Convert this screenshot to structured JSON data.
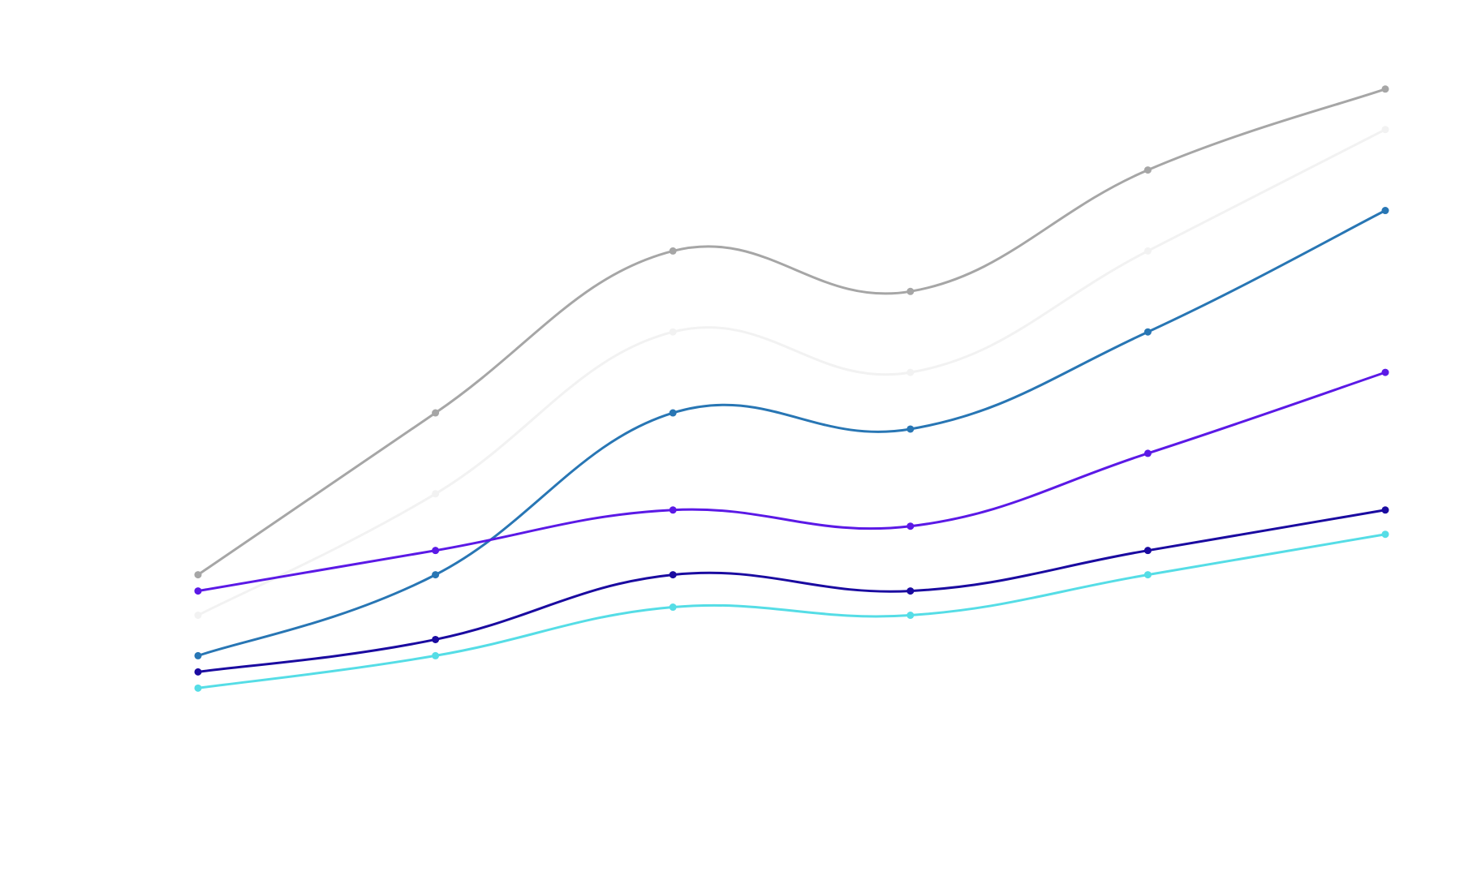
{
  "chart_data": {
    "type": "line",
    "smooth": true,
    "markers": true,
    "grid": false,
    "legend": "none",
    "x": [
      0,
      1,
      2,
      3,
      4,
      5
    ],
    "xlim": [
      0,
      5
    ],
    "ylim": [
      0,
      100
    ],
    "series": [
      {
        "color": "#a6a6a6",
        "values": [
          30.5,
          50.5,
          70.5,
          65.5,
          80.5,
          90.5
        ]
      },
      {
        "color": "#f2f2f2",
        "values": [
          25.5,
          40.5,
          60.5,
          55.5,
          70.5,
          85.5
        ]
      },
      {
        "color": "#2876b4",
        "values": [
          20.5,
          30.5,
          50.5,
          48.5,
          60.5,
          75.5
        ]
      },
      {
        "color": "#5b19e6",
        "values": [
          28.5,
          33.5,
          38.5,
          36.5,
          45.5,
          55.5
        ]
      },
      {
        "color": "#1a0aa0",
        "values": [
          18.5,
          22.5,
          30.5,
          28.5,
          33.5,
          38.5
        ]
      },
      {
        "color": "#55dde6",
        "values": [
          16.5,
          20.5,
          26.5,
          25.5,
          30.5,
          35.5
        ]
      }
    ]
  }
}
